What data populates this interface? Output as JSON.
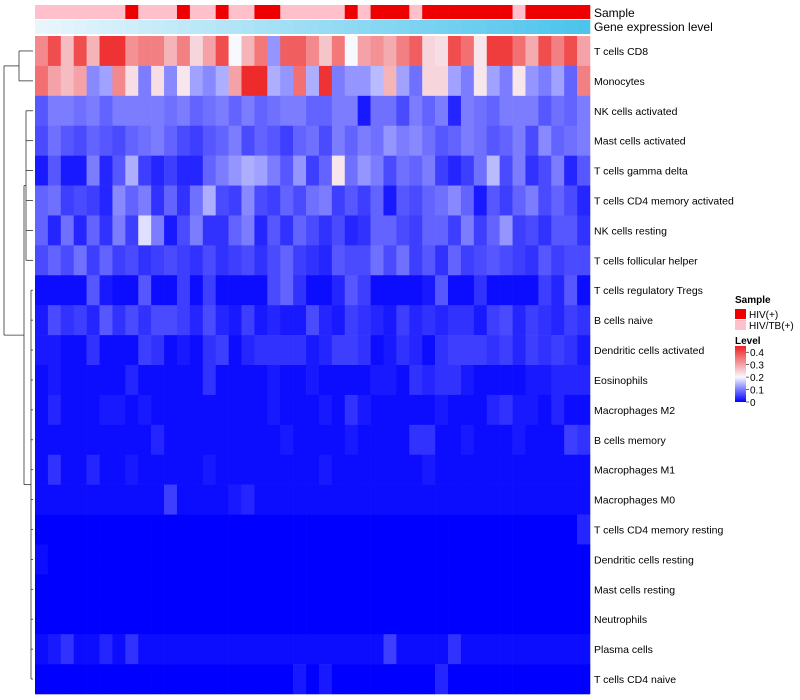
{
  "chart_data": {
    "type": "heatmap",
    "title": "",
    "annotation_labels": [
      "Sample",
      "Gene expression level"
    ],
    "rows": [
      "T cells CD8",
      "Monocytes",
      "NK cells activated",
      "Mast cells activated",
      "T cells gamma delta",
      "T cells CD4 memory activated",
      "NK cells resting",
      "T cells follicular helper",
      "T cells regulatory  Tregs",
      "B cells naive",
      "Dendritic cells activated",
      "Eosinophils",
      "Macrophages M2",
      "B cells memory",
      "Macrophages M1",
      "Macrophages M0",
      "T cells CD4 memory resting",
      "Dendritic cells resting",
      "Mast cells resting",
      "Neutrophils",
      "Plasma cells",
      "T cells CD4 naive"
    ],
    "n_columns": 43,
    "sample_annotation": [
      "HIV/TB(+)",
      "HIV/TB(+)",
      "HIV/TB(+)",
      "HIV/TB(+)",
      "HIV/TB(+)",
      "HIV/TB(+)",
      "HIV/TB(+)",
      "HIV(+)",
      "HIV/TB(+)",
      "HIV/TB(+)",
      "HIV/TB(+)",
      "HIV(+)",
      "HIV/TB(+)",
      "HIV/TB(+)",
      "HIV(+)",
      "HIV/TB(+)",
      "HIV/TB(+)",
      "HIV(+)",
      "HIV(+)",
      "HIV/TB(+)",
      "HIV/TB(+)",
      "HIV/TB(+)",
      "HIV/TB(+)",
      "HIV/TB(+)",
      "HIV(+)",
      "HIV/TB(+)",
      "HIV(+)",
      "HIV(+)",
      "HIV(+)",
      "HIV/TB(+)",
      "HIV(+)",
      "HIV(+)",
      "HIV(+)",
      "HIV(+)",
      "HIV(+)",
      "HIV(+)",
      "HIV(+)",
      "HIV/TB(+)",
      "HIV(+)",
      "HIV(+)",
      "HIV(+)",
      "HIV(+)",
      "HIV(+)"
    ],
    "values": [
      [
        0.33,
        0.4,
        0.27,
        0.4,
        0.28,
        0.43,
        0.43,
        0.32,
        0.34,
        0.34,
        0.28,
        0.34,
        0.24,
        0.3,
        0.4,
        0.2,
        0.28,
        0.35,
        0.12,
        0.38,
        0.38,
        0.33,
        0.26,
        0.35,
        0.2,
        0.3,
        0.32,
        0.29,
        0.34,
        0.38,
        0.24,
        0.23,
        0.4,
        0.36,
        0.22,
        0.42,
        0.42,
        0.36,
        0.29,
        0.4,
        0.34,
        0.4,
        0.3
      ],
      [
        0.36,
        0.3,
        0.27,
        0.3,
        0.11,
        0.13,
        0.33,
        0.23,
        0.1,
        0.23,
        0.11,
        0.22,
        0.13,
        0.11,
        0.14,
        0.3,
        0.44,
        0.44,
        0.14,
        0.12,
        0.36,
        0.14,
        0.43,
        0.1,
        0.12,
        0.12,
        0.15,
        0.28,
        0.13,
        0.09,
        0.24,
        0.24,
        0.13,
        0.1,
        0.22,
        0.13,
        0.1,
        0.22,
        0.12,
        0.1,
        0.13,
        0.08,
        0.34
      ],
      [
        0.07,
        0.1,
        0.1,
        0.09,
        0.1,
        0.08,
        0.1,
        0.1,
        0.1,
        0.1,
        0.09,
        0.1,
        0.08,
        0.09,
        0.1,
        0.08,
        0.1,
        0.08,
        0.09,
        0.1,
        0.1,
        0.08,
        0.08,
        0.1,
        0.1,
        0.02,
        0.09,
        0.09,
        0.06,
        0.1,
        0.08,
        0.1,
        0.03,
        0.1,
        0.09,
        0.08,
        0.1,
        0.1,
        0.1,
        0.07,
        0.09,
        0.08,
        0.1
      ],
      [
        0.06,
        0.09,
        0.07,
        0.06,
        0.08,
        0.07,
        0.06,
        0.08,
        0.09,
        0.1,
        0.08,
        0.06,
        0.05,
        0.07,
        0.08,
        0.1,
        0.06,
        0.08,
        0.07,
        0.05,
        0.08,
        0.09,
        0.06,
        0.1,
        0.08,
        0.1,
        0.09,
        0.12,
        0.1,
        0.11,
        0.09,
        0.07,
        0.08,
        0.1,
        0.09,
        0.07,
        0.08,
        0.1,
        0.06,
        0.11,
        0.08,
        0.09,
        0.1
      ],
      [
        0.02,
        0.07,
        0.02,
        0.02,
        0.1,
        0.03,
        0.07,
        0.14,
        0.05,
        0.03,
        0.05,
        0.03,
        0.03,
        0.08,
        0.1,
        0.12,
        0.14,
        0.13,
        0.1,
        0.07,
        0.12,
        0.05,
        0.08,
        0.22,
        0.09,
        0.12,
        0.1,
        0.06,
        0.09,
        0.08,
        0.1,
        0.05,
        0.03,
        0.05,
        0.09,
        0.15,
        0.06,
        0.1,
        0.04,
        0.06,
        0.1,
        0.03,
        0.07
      ],
      [
        0.08,
        0.09,
        0.05,
        0.06,
        0.05,
        0.03,
        0.11,
        0.08,
        0.1,
        0.04,
        0.08,
        0.04,
        0.09,
        0.14,
        0.06,
        0.05,
        0.11,
        0.06,
        0.05,
        0.08,
        0.06,
        0.09,
        0.1,
        0.05,
        0.07,
        0.05,
        0.08,
        0.02,
        0.07,
        0.06,
        0.08,
        0.09,
        0.11,
        0.08,
        0.02,
        0.07,
        0.05,
        0.08,
        0.1,
        0.06,
        0.08,
        0.06,
        0.03
      ],
      [
        0.08,
        0.03,
        0.09,
        0.03,
        0.08,
        0.04,
        0.1,
        0.05,
        0.18,
        0.1,
        0.02,
        0.06,
        0.1,
        0.04,
        0.04,
        0.08,
        0.1,
        0.03,
        0.07,
        0.04,
        0.08,
        0.06,
        0.04,
        0.06,
        0.03,
        0.04,
        0.08,
        0.08,
        0.06,
        0.05,
        0.08,
        0.08,
        0.05,
        0.1,
        0.05,
        0.08,
        0.12,
        0.05,
        0.06,
        0.04,
        0.07,
        0.07,
        0.04
      ],
      [
        0.06,
        0.08,
        0.06,
        0.09,
        0.05,
        0.08,
        0.05,
        0.06,
        0.04,
        0.05,
        0.06,
        0.05,
        0.04,
        0.06,
        0.04,
        0.05,
        0.06,
        0.04,
        0.06,
        0.08,
        0.05,
        0.04,
        0.03,
        0.07,
        0.06,
        0.06,
        0.09,
        0.06,
        0.09,
        0.05,
        0.07,
        0.04,
        0.08,
        0.05,
        0.06,
        0.07,
        0.06,
        0.05,
        0.04,
        0.07,
        0.05,
        0.06,
        0.06
      ],
      [
        0.01,
        0.01,
        0.01,
        0.01,
        0.07,
        0.02,
        0.01,
        0.01,
        0.07,
        0.01,
        0.01,
        0.05,
        0.01,
        0.05,
        0.01,
        0.01,
        0.01,
        0.01,
        0.06,
        0.08,
        0.04,
        0.01,
        0.01,
        0.03,
        0.07,
        0.05,
        0.01,
        0.01,
        0.01,
        0.01,
        0.02,
        0.07,
        0.01,
        0.01,
        0.04,
        0.01,
        0.01,
        0.01,
        0.01,
        0.05,
        0.03,
        0.07,
        0.01
      ],
      [
        0.02,
        0.06,
        0.04,
        0.05,
        0.03,
        0.07,
        0.04,
        0.06,
        0.04,
        0.06,
        0.06,
        0.05,
        0.03,
        0.06,
        0.03,
        0.02,
        0.05,
        0.02,
        0.03,
        0.02,
        0.02,
        0.06,
        0.03,
        0.02,
        0.05,
        0.04,
        0.03,
        0.02,
        0.05,
        0.03,
        0.04,
        0.03,
        0.04,
        0.04,
        0.02,
        0.05,
        0.06,
        0.03,
        0.05,
        0.04,
        0.03,
        0.05,
        0.04
      ],
      [
        0.02,
        0.02,
        0.01,
        0.01,
        0.04,
        0.01,
        0.01,
        0.01,
        0.05,
        0.04,
        0.01,
        0.02,
        0.01,
        0.04,
        0.05,
        0.01,
        0.03,
        0.04,
        0.04,
        0.04,
        0.04,
        0.02,
        0.03,
        0.05,
        0.05,
        0.04,
        0.01,
        0.02,
        0.04,
        0.03,
        0.01,
        0.04,
        0.05,
        0.05,
        0.05,
        0.04,
        0.05,
        0.03,
        0.05,
        0.04,
        0.05,
        0.04,
        0.02
      ],
      [
        0.01,
        0.02,
        0.01,
        0.01,
        0.01,
        0.01,
        0.01,
        0.03,
        0.01,
        0.01,
        0.01,
        0.01,
        0.01,
        0.04,
        0.01,
        0.01,
        0.01,
        0.01,
        0.02,
        0.01,
        0.01,
        0.02,
        0.01,
        0.01,
        0.01,
        0.01,
        0.02,
        0.02,
        0.01,
        0.04,
        0.03,
        0.04,
        0.04,
        0.02,
        0.01,
        0.01,
        0.01,
        0.01,
        0.02,
        0.02,
        0.03,
        0.03,
        0.03
      ],
      [
        0.01,
        0.03,
        0.01,
        0.01,
        0.01,
        0.02,
        0.02,
        0.01,
        0.02,
        0.01,
        0.01,
        0.01,
        0.01,
        0.01,
        0.01,
        0.01,
        0.01,
        0.01,
        0.02,
        0.01,
        0.01,
        0.01,
        0.02,
        0.01,
        0.04,
        0.02,
        0.01,
        0.01,
        0.01,
        0.01,
        0.01,
        0.02,
        0.01,
        0.01,
        0.01,
        0.03,
        0.04,
        0.02,
        0.02,
        0.01,
        0.03,
        0.01,
        0.01
      ],
      [
        0.01,
        0.01,
        0.01,
        0.01,
        0.01,
        0.01,
        0.01,
        0.01,
        0.01,
        0.03,
        0.01,
        0.01,
        0.01,
        0.01,
        0.01,
        0.01,
        0.01,
        0.01,
        0.01,
        0.02,
        0.01,
        0.01,
        0.01,
        0.01,
        0.02,
        0.01,
        0.01,
        0.01,
        0.01,
        0.04,
        0.04,
        0.01,
        0.01,
        0.02,
        0.01,
        0.01,
        0.01,
        0.02,
        0.01,
        0.01,
        0.01,
        0.05,
        0.04
      ],
      [
        0.01,
        0.04,
        0.01,
        0.01,
        0.03,
        0.01,
        0.01,
        0.02,
        0.01,
        0.01,
        0.01,
        0.01,
        0.01,
        0.02,
        0.01,
        0.01,
        0.01,
        0.01,
        0.01,
        0.01,
        0.01,
        0.01,
        0.02,
        0.01,
        0.01,
        0.01,
        0.01,
        0.01,
        0.01,
        0.01,
        0.02,
        0.01,
        0.01,
        0.01,
        0.01,
        0.01,
        0.01,
        0.01,
        0.01,
        0.01,
        0.01,
        0.01,
        0.01
      ],
      [
        0.01,
        0.01,
        0.01,
        0.01,
        0.01,
        0.01,
        0.01,
        0.01,
        0.01,
        0.01,
        0.05,
        0.01,
        0.01,
        0.01,
        0.01,
        0.02,
        0.03,
        0.01,
        0.01,
        0.01,
        0.01,
        0.01,
        0.01,
        0.01,
        0.01,
        0.01,
        0.01,
        0.01,
        0.01,
        0.01,
        0.01,
        0.01,
        0.01,
        0.01,
        0.01,
        0.01,
        0.01,
        0.01,
        0.01,
        0.01,
        0.01,
        0.01,
        0.01
      ],
      [
        0.0,
        0.0,
        0.0,
        0.0,
        0.0,
        0.0,
        0.0,
        0.0,
        0.0,
        0.0,
        0.0,
        0.0,
        0.0,
        0.0,
        0.0,
        0.0,
        0.0,
        0.0,
        0.0,
        0.0,
        0.0,
        0.0,
        0.0,
        0.0,
        0.0,
        0.0,
        0.0,
        0.0,
        0.0,
        0.0,
        0.0,
        0.0,
        0.0,
        0.0,
        0.0,
        0.0,
        0.0,
        0.0,
        0.0,
        0.0,
        0.0,
        0.0,
        0.03
      ],
      [
        0.01,
        0.0,
        0.0,
        0.0,
        0.0,
        0.0,
        0.0,
        0.0,
        0.0,
        0.0,
        0.0,
        0.0,
        0.0,
        0.0,
        0.0,
        0.0,
        0.0,
        0.0,
        0.0,
        0.0,
        0.0,
        0.0,
        0.0,
        0.0,
        0.0,
        0.0,
        0.0,
        0.0,
        0.0,
        0.0,
        0.0,
        0.0,
        0.0,
        0.0,
        0.0,
        0.0,
        0.0,
        0.0,
        0.0,
        0.0,
        0.0,
        0.0,
        0.0
      ],
      [
        0.0,
        0.0,
        0.0,
        0.0,
        0.0,
        0.0,
        0.0,
        0.0,
        0.0,
        0.0,
        0.0,
        0.0,
        0.0,
        0.0,
        0.0,
        0.0,
        0.0,
        0.0,
        0.0,
        0.0,
        0.0,
        0.0,
        0.0,
        0.0,
        0.0,
        0.0,
        0.0,
        0.0,
        0.0,
        0.0,
        0.0,
        0.0,
        0.0,
        0.0,
        0.0,
        0.0,
        0.0,
        0.0,
        0.0,
        0.0,
        0.0,
        0.0,
        0.0
      ],
      [
        0.0,
        0.0,
        0.0,
        0.0,
        0.0,
        0.0,
        0.0,
        0.0,
        0.0,
        0.0,
        0.0,
        0.0,
        0.0,
        0.0,
        0.0,
        0.0,
        0.0,
        0.0,
        0.0,
        0.0,
        0.0,
        0.0,
        0.0,
        0.0,
        0.0,
        0.0,
        0.0,
        0.0,
        0.0,
        0.0,
        0.0,
        0.0,
        0.0,
        0.0,
        0.0,
        0.0,
        0.0,
        0.0,
        0.0,
        0.0,
        0.0,
        0.0,
        0.0
      ],
      [
        0.01,
        0.02,
        0.04,
        0.01,
        0.01,
        0.03,
        0.01,
        0.04,
        0.01,
        0.01,
        0.01,
        0.01,
        0.01,
        0.01,
        0.01,
        0.01,
        0.01,
        0.01,
        0.01,
        0.01,
        0.01,
        0.01,
        0.01,
        0.01,
        0.01,
        0.01,
        0.01,
        0.05,
        0.01,
        0.01,
        0.01,
        0.01,
        0.04,
        0.01,
        0.01,
        0.01,
        0.01,
        0.01,
        0.01,
        0.01,
        0.01,
        0.01,
        0.01
      ],
      [
        0.0,
        0.0,
        0.0,
        0.0,
        0.0,
        0.0,
        0.0,
        0.0,
        0.0,
        0.0,
        0.0,
        0.0,
        0.0,
        0.0,
        0.0,
        0.0,
        0.0,
        0.0,
        0.0,
        0.0,
        0.02,
        0.0,
        0.02,
        0.0,
        0.0,
        0.0,
        0.0,
        0.0,
        0.0,
        0.0,
        0.0,
        0.03,
        0.0,
        0.0,
        0.0,
        0.0,
        0.0,
        0.0,
        0.0,
        0.0,
        0.0,
        0.0,
        0.0
      ]
    ],
    "legend": {
      "sample_title": "Sample",
      "sample_entries": [
        {
          "label": "HIV(+)",
          "color": "#ee0000"
        },
        {
          "label": "HIV/TB(+)",
          "color": "#ffc0cb"
        }
      ],
      "level_title": "Level",
      "level_ticks": [
        "0",
        "0.1",
        "0.2",
        "0.3",
        "0.4"
      ],
      "level_range": [
        0,
        0.45
      ]
    },
    "colors": {
      "low": "#0000ff",
      "mid": "#f8f8ff",
      "high": "#ee2222",
      "gene_bar_light": "#e8f6fc",
      "gene_bar_dark": "#4cc4ec"
    }
  }
}
